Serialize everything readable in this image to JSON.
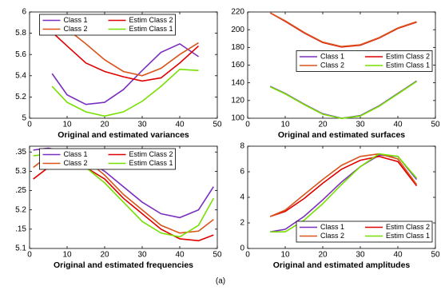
{
  "caption": "(a)",
  "chart_data": [
    {
      "type": "line",
      "title": "Original and estimated variances",
      "legend": "upper center",
      "x": [
        6,
        10,
        15,
        20,
        25,
        30,
        35,
        40,
        45
      ],
      "xlim": [
        0,
        50
      ],
      "xticks": [
        0,
        10,
        20,
        30,
        40,
        50
      ],
      "ylim": [
        5,
        6
      ],
      "yticks": [
        5,
        5.2,
        5.4,
        5.6,
        5.8,
        6
      ],
      "series": [
        {
          "name": "Class 1",
          "color": "#7b2fbe",
          "values": [
            5.42,
            5.22,
            5.13,
            5.15,
            5.27,
            5.45,
            5.62,
            5.7,
            5.58
          ]
        },
        {
          "name": "Estim Class 2",
          "color": "#e00000",
          "values": [
            5.81,
            5.68,
            5.52,
            5.44,
            5.39,
            5.35,
            5.38,
            5.52,
            5.68
          ]
        },
        {
          "name": "Class 2",
          "color": "#d9541a",
          "values": [
            5.89,
            5.84,
            5.7,
            5.55,
            5.44,
            5.4,
            5.47,
            5.6,
            5.71
          ]
        },
        {
          "name": "Estim Class 1",
          "color": "#77e000",
          "values": [
            5.3,
            5.15,
            5.06,
            5.02,
            5.06,
            5.16,
            5.3,
            5.46,
            5.45
          ]
        }
      ]
    },
    {
      "type": "line",
      "title": "Original and estimated surfaces",
      "legend": "center right",
      "x": [
        6,
        10,
        15,
        20,
        25,
        30,
        35,
        40,
        45
      ],
      "xlim": [
        0,
        50
      ],
      "xticks": [
        0,
        10,
        20,
        30,
        40,
        50
      ],
      "ylim": [
        100,
        220
      ],
      "yticks": [
        100,
        120,
        140,
        160,
        180,
        200,
        220
      ],
      "series": [
        {
          "name": "Class 1",
          "color": "#7b2fbe",
          "values": [
            136,
            128,
            116,
            105,
            100,
            103,
            114,
            128,
            142
          ]
        },
        {
          "name": "Estim Class 2",
          "color": "#e00000",
          "values": [
            219,
            209.5,
            196.5,
            185.5,
            180.5,
            182.5,
            190.5,
            201.5,
            208.5
          ]
        },
        {
          "name": "Class 2",
          "color": "#d9541a",
          "values": [
            219,
            210,
            197,
            186,
            181,
            183,
            191,
            202,
            209
          ]
        },
        {
          "name": "Estim Class 1",
          "color": "#77e000",
          "values": [
            135.5,
            127.5,
            115.5,
            104.5,
            99.8,
            102.5,
            113.5,
            127.5,
            141.5
          ]
        }
      ]
    },
    {
      "type": "line",
      "title": "Original and estimated frequencies",
      "legend": "upper center",
      "x": [
        1,
        5,
        10,
        15,
        20,
        25,
        30,
        35,
        40,
        45,
        49
      ],
      "xlim": [
        0,
        50
      ],
      "xticks": [
        0,
        10,
        20,
        30,
        40,
        50
      ],
      "ylim": [
        5.1,
        5.365
      ],
      "yticks": [
        5.1,
        {
          "value": 5.15,
          "label": ".15"
        },
        5.2,
        {
          "value": 5.25,
          "label": ".25"
        },
        5.3,
        {
          "value": 5.35,
          "label": ".35"
        }
      ],
      "series": [
        {
          "name": "Class 1",
          "color": "#7b2fbe",
          "values": [
            5.355,
            5.36,
            5.35,
            5.33,
            5.3,
            5.26,
            5.22,
            5.19,
            5.18,
            5.2,
            5.26
          ]
        },
        {
          "name": "Estim Class 2",
          "color": "#e00000",
          "values": [
            5.28,
            5.31,
            5.32,
            5.31,
            5.28,
            5.23,
            5.19,
            5.15,
            5.125,
            5.12,
            5.135
          ]
        },
        {
          "name": "Class 2",
          "color": "#d9541a",
          "values": [
            5.31,
            5.34,
            5.345,
            5.33,
            5.29,
            5.24,
            5.2,
            5.16,
            5.14,
            5.145,
            5.175
          ]
        },
        {
          "name": "Estim Class 1",
          "color": "#77e000",
          "values": [
            5.34,
            5.345,
            5.34,
            5.31,
            5.27,
            5.22,
            5.17,
            5.14,
            5.13,
            5.16,
            5.23
          ]
        }
      ]
    },
    {
      "type": "line",
      "title": "Original and estimated amplitudes",
      "legend": "lower right",
      "x": [
        6,
        10,
        15,
        20,
        25,
        30,
        35,
        40,
        45
      ],
      "xlim": [
        0,
        50
      ],
      "xticks": [
        0,
        10,
        20,
        30,
        40,
        50
      ],
      "ylim": [
        0,
        8
      ],
      "yticks": [
        0,
        2,
        4,
        6,
        8
      ],
      "series": [
        {
          "name": "Class 1",
          "color": "#7b2fbe",
          "values": [
            1.3,
            1.5,
            2.5,
            3.8,
            5.2,
            6.4,
            7.3,
            7.2,
            5.4
          ]
        },
        {
          "name": "Estim Class 2",
          "color": "#e00000",
          "values": [
            2.5,
            2.9,
            3.9,
            5.1,
            6.2,
            6.9,
            7.2,
            6.8,
            4.9
          ]
        },
        {
          "name": "Class 2",
          "color": "#d9541a",
          "values": [
            2.5,
            3.0,
            4.2,
            5.4,
            6.5,
            7.2,
            7.4,
            7.0,
            5.0
          ]
        },
        {
          "name": "Estim Class 1",
          "color": "#77e000",
          "values": [
            1.3,
            1.3,
            2.2,
            3.5,
            5.0,
            6.4,
            7.4,
            7.2,
            5.5
          ]
        }
      ]
    }
  ]
}
